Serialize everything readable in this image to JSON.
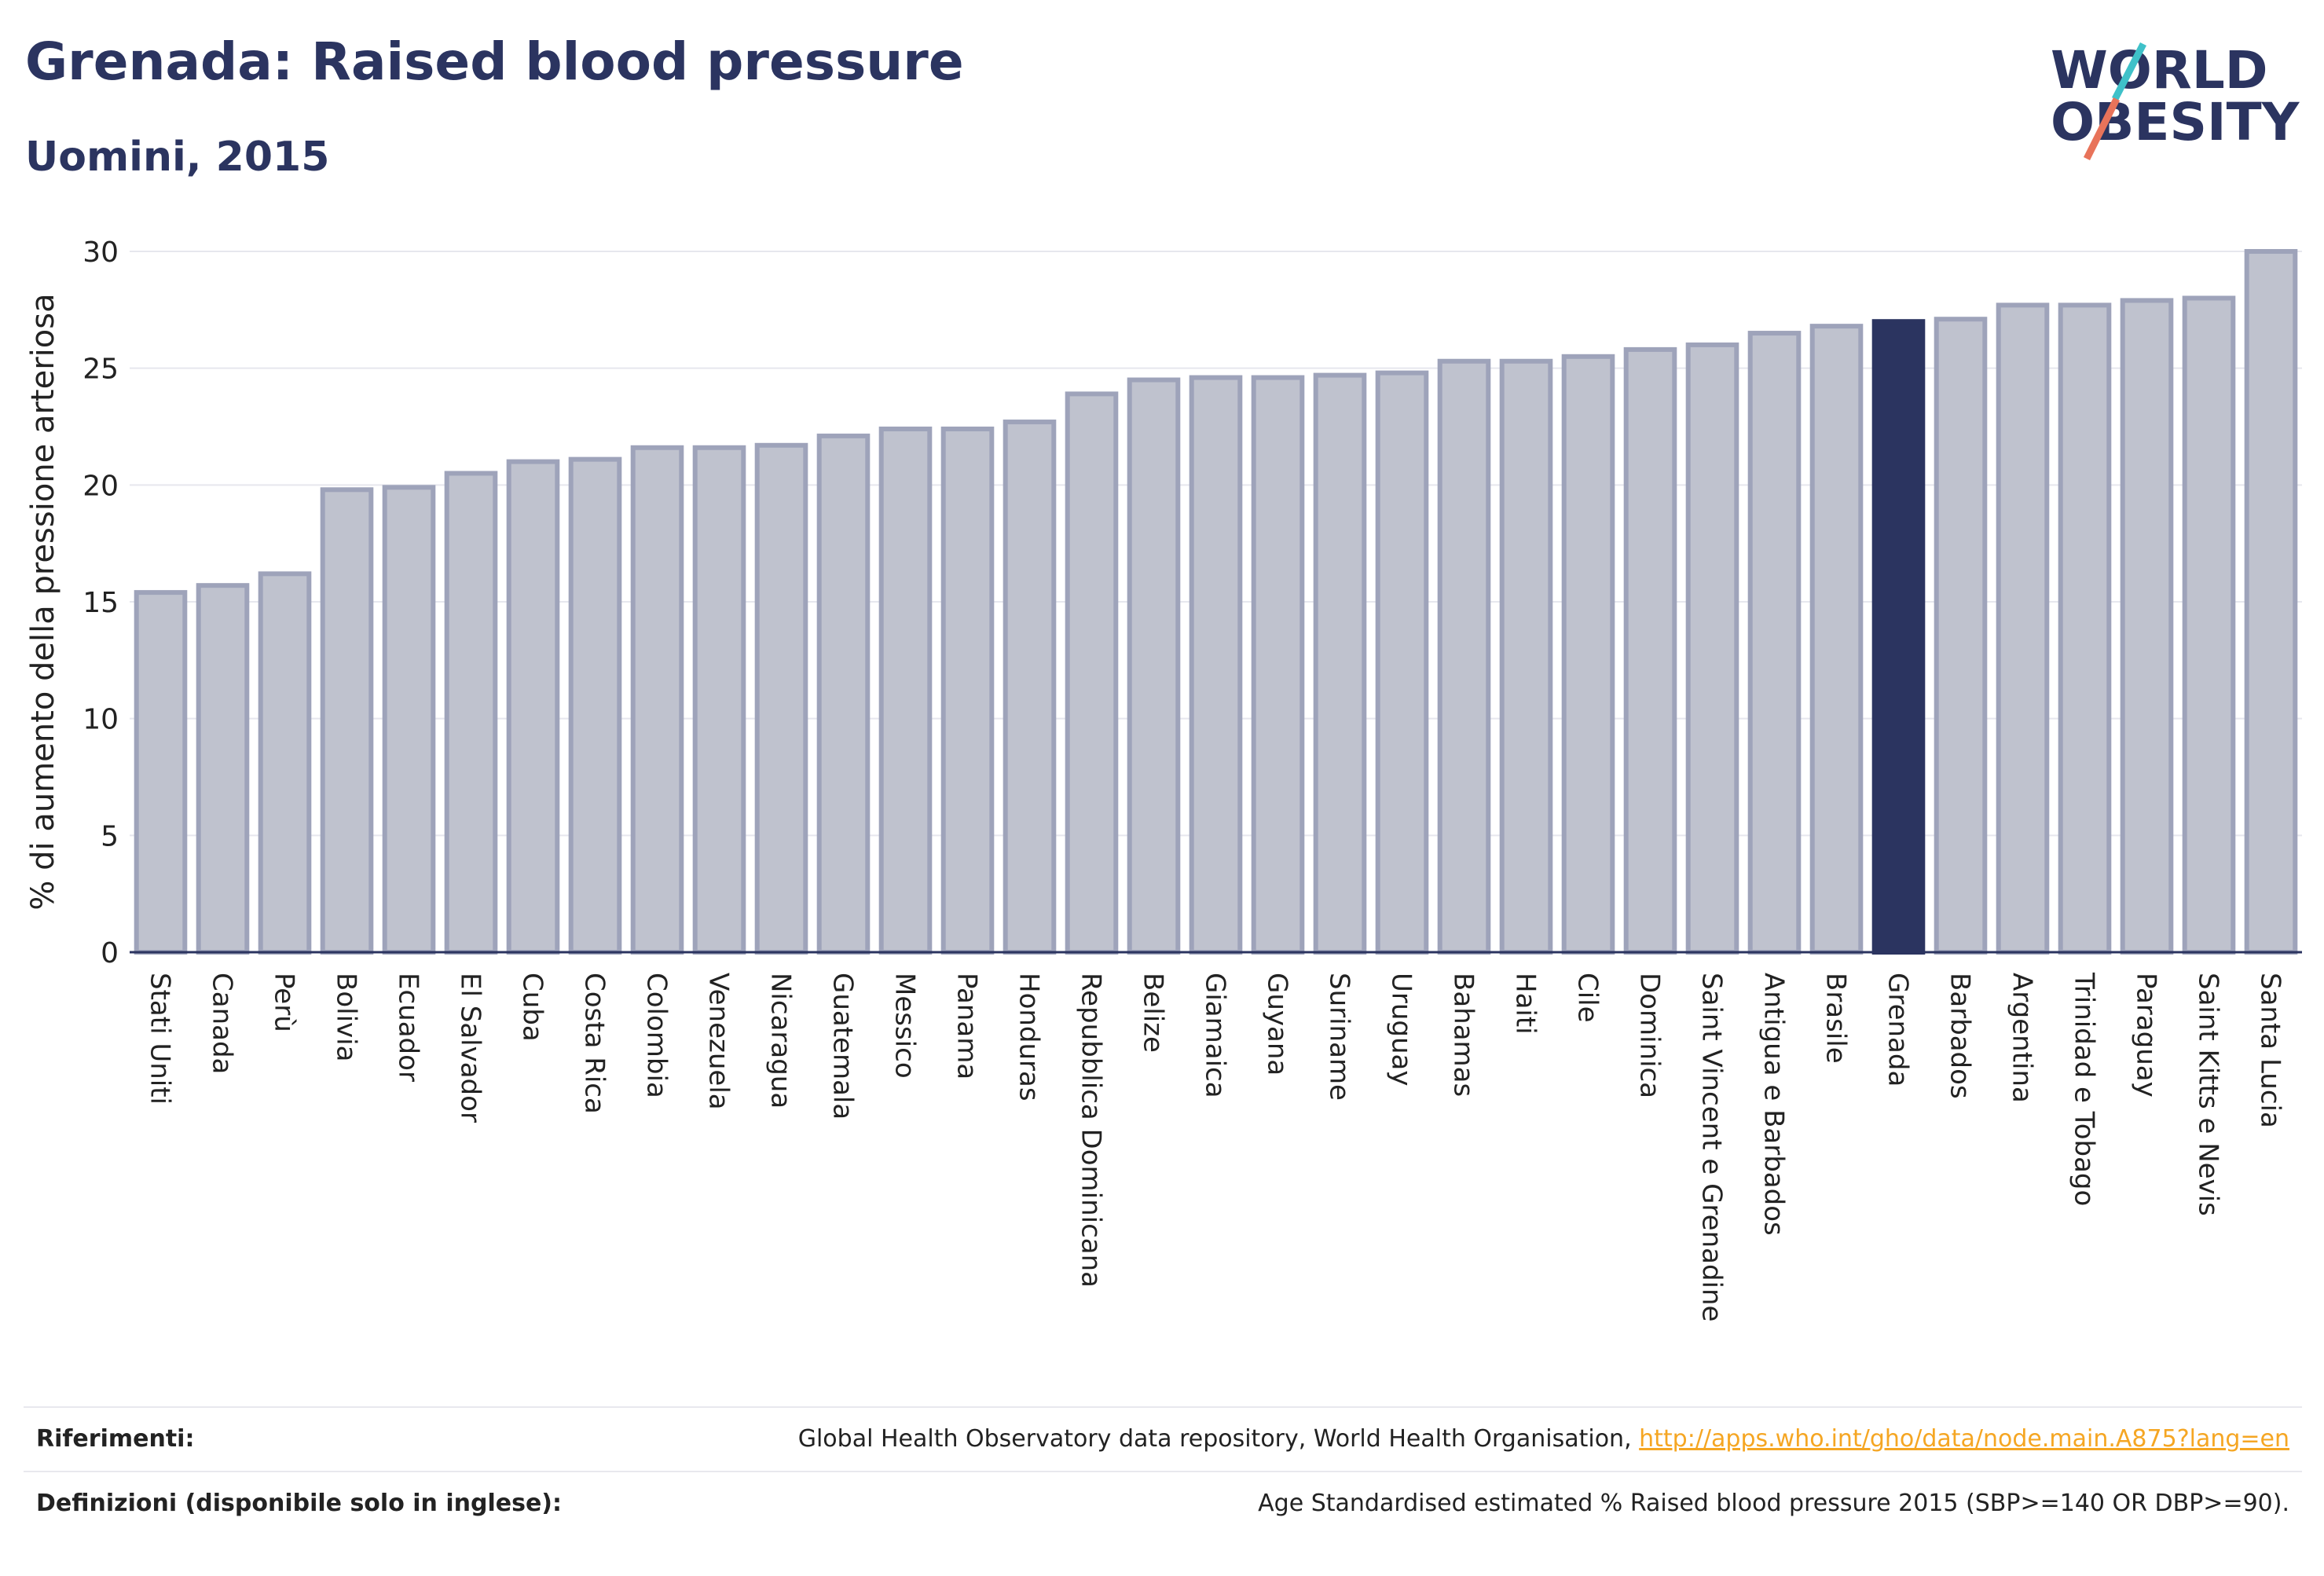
{
  "header": {
    "title": "Grenada: Raised blood pressure",
    "subtitle": "Uomini, 2015"
  },
  "logo": {
    "line1": "WORLD",
    "line2": "OBESITY"
  },
  "colors": {
    "bar": "#bfc2ce",
    "bar_border": "#9ea3ba",
    "highlight": "#2b3460",
    "title": "#2b3460",
    "grid": "#e6e7ee",
    "link": "#f5a623"
  },
  "chart_data": {
    "type": "bar",
    "ylabel": "% di aumento della pressione arteriosa",
    "ylim": [
      0,
      30
    ],
    "yticks": [
      0,
      5,
      10,
      15,
      20,
      25,
      30
    ],
    "grid": true,
    "highlight": "Grenada",
    "categories": [
      "Stati Uniti",
      "Canada",
      "Perù",
      "Bolivia",
      "Ecuador",
      "El Salvador",
      "Cuba",
      "Costa Rica",
      "Colombia",
      "Venezuela",
      "Nicaragua",
      "Guatemala",
      "Messico",
      "Panama",
      "Honduras",
      "Repubblica Dominicana",
      "Belize",
      "Giamaica",
      "Guyana",
      "Suriname",
      "Uruguay",
      "Bahamas",
      "Haiti",
      "Cile",
      "Dominica",
      "Saint Vincent e Grenadine",
      "Antigua e Barbados",
      "Brasile",
      "Grenada",
      "Barbados",
      "Argentina",
      "Trinidad e Tobago",
      "Paraguay",
      "Saint Kitts e Nevis",
      "Santa Lucia"
    ],
    "values": [
      15.4,
      15.7,
      16.2,
      19.8,
      19.9,
      20.5,
      21.0,
      21.1,
      21.6,
      21.6,
      21.7,
      22.1,
      22.4,
      22.4,
      22.7,
      23.9,
      24.5,
      24.6,
      24.6,
      24.7,
      24.8,
      25.3,
      25.3,
      25.5,
      25.8,
      26.0,
      26.5,
      26.8,
      27.0,
      27.1,
      27.7,
      27.7,
      27.9,
      28.0,
      30.0
    ]
  },
  "footer": {
    "references_label": "Riferimenti:",
    "references_text": "Global Health Observatory data repository, World Health Organisation, ",
    "references_link": "http://apps.who.int/gho/data/node.main.A875?lang=en",
    "definitions_label": "Definizioni (disponibile solo in inglese):",
    "definitions_text": "Age Standardised estimated % Raised blood pressure 2015 (SBP>=140 OR DBP>=90)."
  }
}
